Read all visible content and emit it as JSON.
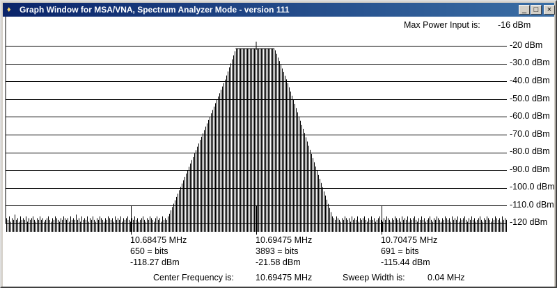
{
  "window": {
    "title": "Graph Window for MSA/VNA, Spectrum Analyzer Mode - version 111",
    "icon": "app-icon",
    "controls": {
      "minimize": "_",
      "maximize": "□",
      "close": "×"
    }
  },
  "header": {
    "max_power_label": "Max Power Input is:",
    "max_power_value": "-16 dBm"
  },
  "y_axis_labels": [
    "-20 dBm",
    "-30.0 dBm",
    "-40.0 dBm",
    "-50.0 dBm",
    "-60.0 dBm",
    "-70.0 dBm",
    "-80.0 dBm",
    "-90.0 dBm",
    "-100.0 dBm",
    "-110.0 dBm",
    "-120 dBm"
  ],
  "markers": [
    {
      "freq": "10.68475 MHz",
      "bits": "650 = bits",
      "power": "-118.27 dBm"
    },
    {
      "freq": "10.69475 MHz",
      "bits": "3893 = bits",
      "power": "-21.58 dBm"
    },
    {
      "freq": "10.70475 MHz",
      "bits": "691 = bits",
      "power": "-115.44 dBm"
    }
  ],
  "footer": {
    "center_label": "Center Frequency is:",
    "center_value": "10.69475 MHz",
    "sweep_label": "Sweep Width is:",
    "sweep_value": "0.04 MHz"
  },
  "chart_data": {
    "type": "bar",
    "x_center_mhz": 10.69475,
    "sweep_width_mhz": 0.04,
    "ylim": [
      -120,
      -20
    ],
    "grid": true,
    "series": [
      {
        "values": [
          -117,
          -118,
          -116,
          -119,
          -117,
          -118,
          -115,
          -118,
          -117,
          -119,
          -116,
          -118,
          -117,
          -118,
          -116,
          -119,
          -117,
          -118,
          -117,
          -116,
          -118,
          -119,
          -117,
          -118,
          -116,
          -118,
          -117,
          -119,
          -118,
          -117,
          -116,
          -118,
          -119,
          -117,
          -118,
          -116,
          -117,
          -118,
          -119,
          -117,
          -118,
          -116,
          -117,
          -118,
          -117,
          -119,
          -116,
          -118,
          -117,
          -118,
          -115,
          -118,
          -117,
          -119,
          -116,
          -118,
          -117,
          -118,
          -116,
          -119,
          -117,
          -118,
          -116,
          -118,
          -119,
          -117,
          -118,
          -116,
          -117,
          -118,
          -119,
          -117,
          -118,
          -116,
          -117,
          -118,
          -117,
          -119,
          -116,
          -118,
          -117,
          -118,
          -116,
          -119,
          -117,
          -118,
          -117,
          -116,
          -118,
          -119,
          -117,
          -118,
          -116,
          -118,
          -117,
          -119,
          -118,
          -117,
          -116,
          -118,
          -119,
          -117,
          -118,
          -116,
          -117,
          -118,
          -119,
          -117,
          -116,
          -118,
          -117,
          -119,
          -116,
          -118,
          -117,
          -118,
          -116,
          -119,
          -117,
          -118,
          -116,
          -118,
          -117,
          -119,
          -118,
          -117,
          -116,
          -118,
          -119,
          -117,
          -118,
          -116,
          -117,
          -118,
          -119,
          -117,
          -116,
          -118,
          -117,
          -119,
          -116,
          -118,
          -117,
          -118,
          -116,
          -119,
          -117,
          -118,
          -117,
          -116,
          -118,
          -119,
          -117,
          -118,
          -116,
          -118,
          -117,
          -119,
          -118,
          -117,
          -116,
          -118,
          -119,
          -117,
          -118,
          -116,
          -117,
          -118,
          -119,
          -117,
          -118,
          -116,
          -117,
          -118,
          -117,
          -119,
          -116,
          -118,
          -117,
          -118,
          -116,
          -119,
          -117,
          -118,
          -117,
          -116,
          -118,
          -119,
          -117,
          -118,
          -116,
          -118,
          -117,
          -119,
          -118,
          -117,
          -116,
          -118,
          -119,
          -117,
          -118,
          -116,
          -117,
          -118,
          -119,
          -117,
          -118,
          -116,
          -117,
          -118,
          -117,
          -119,
          -116,
          -118,
          -117,
          -118,
          -116,
          -119,
          -117,
          -118,
          -117,
          -116,
          -118,
          -119,
          -117,
          -118,
          -116,
          -118,
          -117,
          -119,
          -118,
          -117,
          -116,
          -118,
          -119,
          -117,
          -118,
          -116,
          -117,
          -118,
          -119,
          -117,
          -118,
          -116,
          -117,
          -118,
          -117,
          -119,
          -116,
          -118,
          -117,
          -118,
          -116,
          -119,
          -117,
          -118,
          -117,
          -116,
          -118,
          -119,
          -117,
          -118,
          -116,
          -118,
          -117,
          -119,
          -118,
          -117,
          -116,
          -118,
          -119,
          -117,
          -118,
          -116,
          -117,
          -118,
          -119,
          -117,
          -118,
          -116,
          -117,
          -118,
          -117,
          -119,
          -116,
          -118,
          -117,
          -118,
          -116,
          -119,
          -117,
          -118,
          -117,
          -116,
          -118,
          -119,
          -117,
          -118,
          -116,
          -118,
          -117,
          -119,
          -118,
          -117,
          -116,
          -118,
          -119,
          -117,
          -118,
          -116,
          -117,
          -118,
          -119,
          -117,
          -118,
          -116,
          -117,
          -118,
          -117,
          -119,
          -116,
          -118,
          -117,
          -118,
          -116,
          -119,
          -117,
          -118,
          -117,
          -116,
          -118,
          -119,
          -117,
          -118,
          -116,
          -118,
          -117,
          -119,
          -118,
          -117,
          -116,
          -118,
          -119,
          -117,
          -118,
          -116,
          -117,
          -118,
          -119,
          -117,
          -118,
          -116,
          -117,
          -118,
          -117,
          -119,
          -116,
          -118,
          -117,
          -118,
          -116,
          -119,
          -117,
          -118,
          -117,
          -116,
          -118,
          -119,
          -117,
          -118,
          -116,
          -118,
          -117,
          -119,
          -118,
          -117,
          -116,
          -118,
          -119,
          -117,
          -118,
          -116,
          -117,
          -118,
          -119,
          -117,
          -118,
          -116,
          -117,
          -118,
          -117,
          -119,
          -116,
          -118,
          -117,
          -118,
          -116,
          -119,
          -117,
          -118,
          -117,
          -116,
          -118,
          -119,
          -117,
          -118,
          -116,
          -118,
          -117,
          -119,
          -118,
          -117,
          -116,
          -118,
          -119,
          -117,
          -118,
          -116,
          -117,
          -118,
          -119,
          -117,
          -118,
          -116,
          -117,
          -118,
          -117,
          -119,
          -116,
          -118,
          -117,
          -118,
          -116,
          -119,
          -117,
          -118,
          -117,
          -116,
          -118,
          -119,
          -117,
          -118,
          -116,
          -118,
          -117,
          -119,
          -118,
          -117,
          -116,
          -118,
          -119,
          -117,
          -118,
          -116,
          -117,
          -118,
          -119,
          -117,
          -118,
          -116,
          -117,
          -118,
          -117,
          -119,
          -116,
          -118,
          -117,
          -118,
          -116,
          -119,
          -117,
          -118,
          -117,
          -116,
          -118,
          -119,
          -117,
          -118,
          -116,
          -118,
          -117,
          -119,
          -118,
          -117,
          -116,
          -118,
          -119,
          -117,
          -118,
          -116,
          -117,
          -118,
          -119,
          -117,
          -118,
          -116,
          -117,
          -118,
          -117,
          -119
        ],
        "passband": {
          "start_mhz": 10.6876,
          "edge_lo_mhz": 10.6922,
          "top_lo_mhz": 10.6931,
          "top_hi_mhz": 10.6962,
          "edge_hi_mhz": 10.6972,
          "end_mhz": 10.7009,
          "top_dbm": -21.6,
          "edge_dbm": -40
        }
      }
    ]
  }
}
